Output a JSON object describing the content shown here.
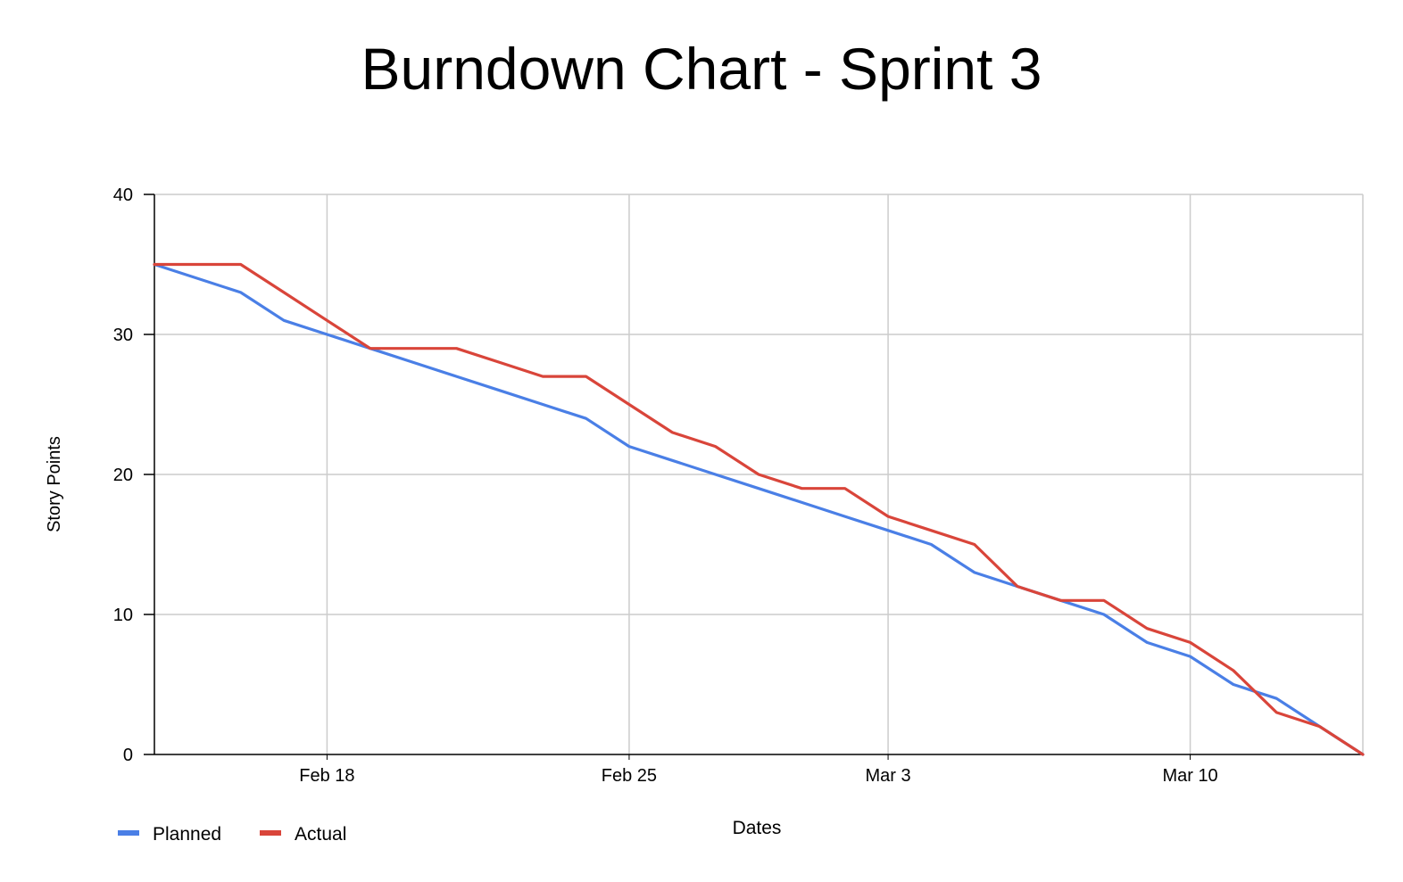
{
  "chart_data": {
    "type": "line",
    "title": "Burndown Chart - Sprint 3",
    "xlabel": "Dates",
    "ylabel": "Story Points",
    "x_type": "date",
    "x_start": "2025-02-14",
    "x_end": "2025-03-14",
    "x_ticks": [
      {
        "date": "2025-02-18",
        "label": "Feb 18"
      },
      {
        "date": "2025-02-25",
        "label": "Feb 25"
      },
      {
        "date": "2025-03-03",
        "label": "Mar 3"
      },
      {
        "date": "2025-03-10",
        "label": "Mar 10"
      }
    ],
    "ylim": [
      0,
      40
    ],
    "y_ticks": [
      0,
      10,
      20,
      30,
      40
    ],
    "grid": true,
    "legend_position": "bottom-left",
    "series": [
      {
        "name": "Planned",
        "color": "#4a7fe6",
        "points": [
          [
            "2025-02-14",
            35
          ],
          [
            "2025-02-16",
            33
          ],
          [
            "2025-02-17",
            31
          ],
          [
            "2025-02-18",
            30
          ],
          [
            "2025-02-19",
            29
          ],
          [
            "2025-02-20",
            28
          ],
          [
            "2025-02-21",
            27
          ],
          [
            "2025-02-22",
            26
          ],
          [
            "2025-02-23",
            25
          ],
          [
            "2025-02-24",
            24
          ],
          [
            "2025-02-25",
            22
          ],
          [
            "2025-02-26",
            21
          ],
          [
            "2025-02-27",
            20
          ],
          [
            "2025-02-28",
            19
          ],
          [
            "2025-03-01",
            18
          ],
          [
            "2025-03-02",
            17
          ],
          [
            "2025-03-03",
            16
          ],
          [
            "2025-03-04",
            15
          ],
          [
            "2025-03-05",
            13
          ],
          [
            "2025-03-06",
            12
          ],
          [
            "2025-03-07",
            11
          ],
          [
            "2025-03-08",
            10
          ],
          [
            "2025-03-09",
            8
          ],
          [
            "2025-03-10",
            7
          ],
          [
            "2025-03-11",
            5
          ],
          [
            "2025-03-12",
            4
          ],
          [
            "2025-03-13",
            2
          ],
          [
            "2025-03-14",
            0
          ]
        ]
      },
      {
        "name": "Actual",
        "color": "#d9453a",
        "points": [
          [
            "2025-02-14",
            35
          ],
          [
            "2025-02-16",
            35
          ],
          [
            "2025-02-17",
            33
          ],
          [
            "2025-02-18",
            31
          ],
          [
            "2025-02-19",
            29
          ],
          [
            "2025-02-20",
            29
          ],
          [
            "2025-02-21",
            29
          ],
          [
            "2025-02-22",
            28
          ],
          [
            "2025-02-23",
            27
          ],
          [
            "2025-02-24",
            27
          ],
          [
            "2025-02-25",
            25
          ],
          [
            "2025-02-26",
            23
          ],
          [
            "2025-02-27",
            22
          ],
          [
            "2025-02-28",
            20
          ],
          [
            "2025-03-01",
            19
          ],
          [
            "2025-03-02",
            19
          ],
          [
            "2025-03-03",
            17
          ],
          [
            "2025-03-04",
            16
          ],
          [
            "2025-03-05",
            15
          ],
          [
            "2025-03-06",
            12
          ],
          [
            "2025-03-07",
            11
          ],
          [
            "2025-03-08",
            11
          ],
          [
            "2025-03-09",
            9
          ],
          [
            "2025-03-10",
            8
          ],
          [
            "2025-03-11",
            6
          ],
          [
            "2025-03-12",
            3
          ],
          [
            "2025-03-13",
            2
          ],
          [
            "2025-03-14",
            0
          ]
        ]
      }
    ]
  }
}
